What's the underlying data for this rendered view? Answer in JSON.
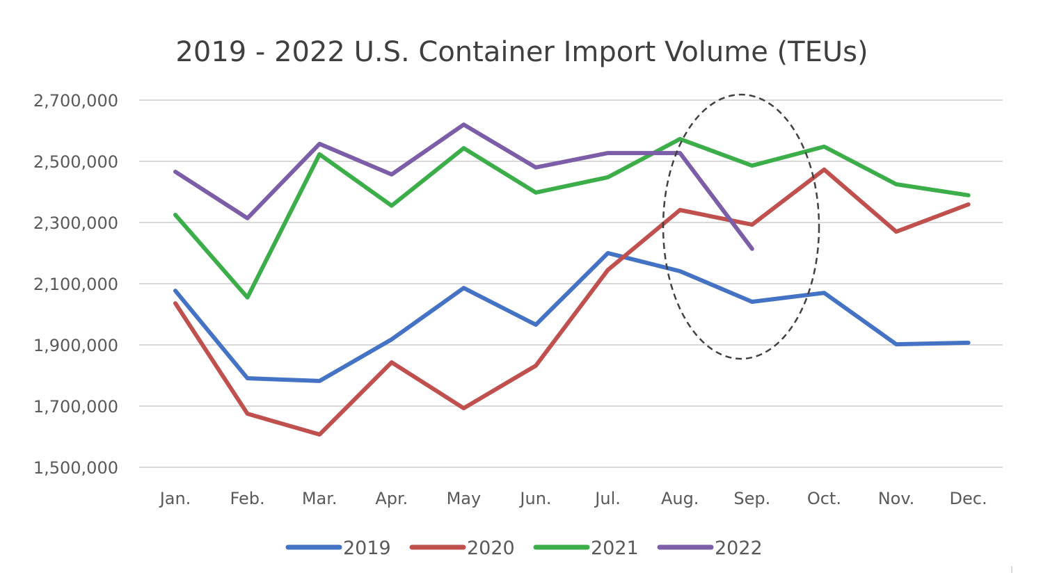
{
  "chart_data": {
    "type": "line",
    "title": "2019 - 2022 U.S. Container Import Volume (TEUs)",
    "xlabel": "",
    "ylabel": "",
    "categories": [
      "Jan.",
      "Feb.",
      "Mar.",
      "Apr.",
      "May",
      "Jun.",
      "Jul.",
      "Aug.",
      "Sep.",
      "Oct.",
      "Nov.",
      "Dec."
    ],
    "ylim": [
      1500000,
      2700000
    ],
    "yticks": [
      1500000,
      1700000,
      1900000,
      2100000,
      2300000,
      2500000,
      2700000
    ],
    "ytick_labels": [
      "1,500,000",
      "1,700,000",
      "1,900,000",
      "2,100,000",
      "2,300,000",
      "2,500,000",
      "2,700,000"
    ],
    "grid": true,
    "legend_position": "bottom",
    "series": [
      {
        "name": "2019",
        "color": "#4472c4",
        "values": [
          2077000,
          1791000,
          1782000,
          1918000,
          2086000,
          1966000,
          2200000,
          2141000,
          2041000,
          2070000,
          1902000,
          1907000
        ]
      },
      {
        "name": "2020",
        "color": "#c0504d",
        "values": [
          2036000,
          1675000,
          1607000,
          1843000,
          1693000,
          1832000,
          2145000,
          2341000,
          2293000,
          2473000,
          2270000,
          2359000
        ]
      },
      {
        "name": "2021",
        "color": "#3cae49",
        "values": [
          2325000,
          2055000,
          2523000,
          2355000,
          2543000,
          2398000,
          2448000,
          2573000,
          2486000,
          2548000,
          2425000,
          2389000
        ]
      },
      {
        "name": "2022",
        "color": "#7b5ea7",
        "values": [
          2466000,
          2314000,
          2557000,
          2457000,
          2620000,
          2480000,
          2527000,
          2527000,
          2214000,
          null,
          null,
          null
        ]
      }
    ],
    "annotations": [
      {
        "type": "dashed-ellipse",
        "highlights": "Sep.",
        "description": "Dashed ellipse highlighting the Aug.–Oct. region"
      }
    ]
  }
}
